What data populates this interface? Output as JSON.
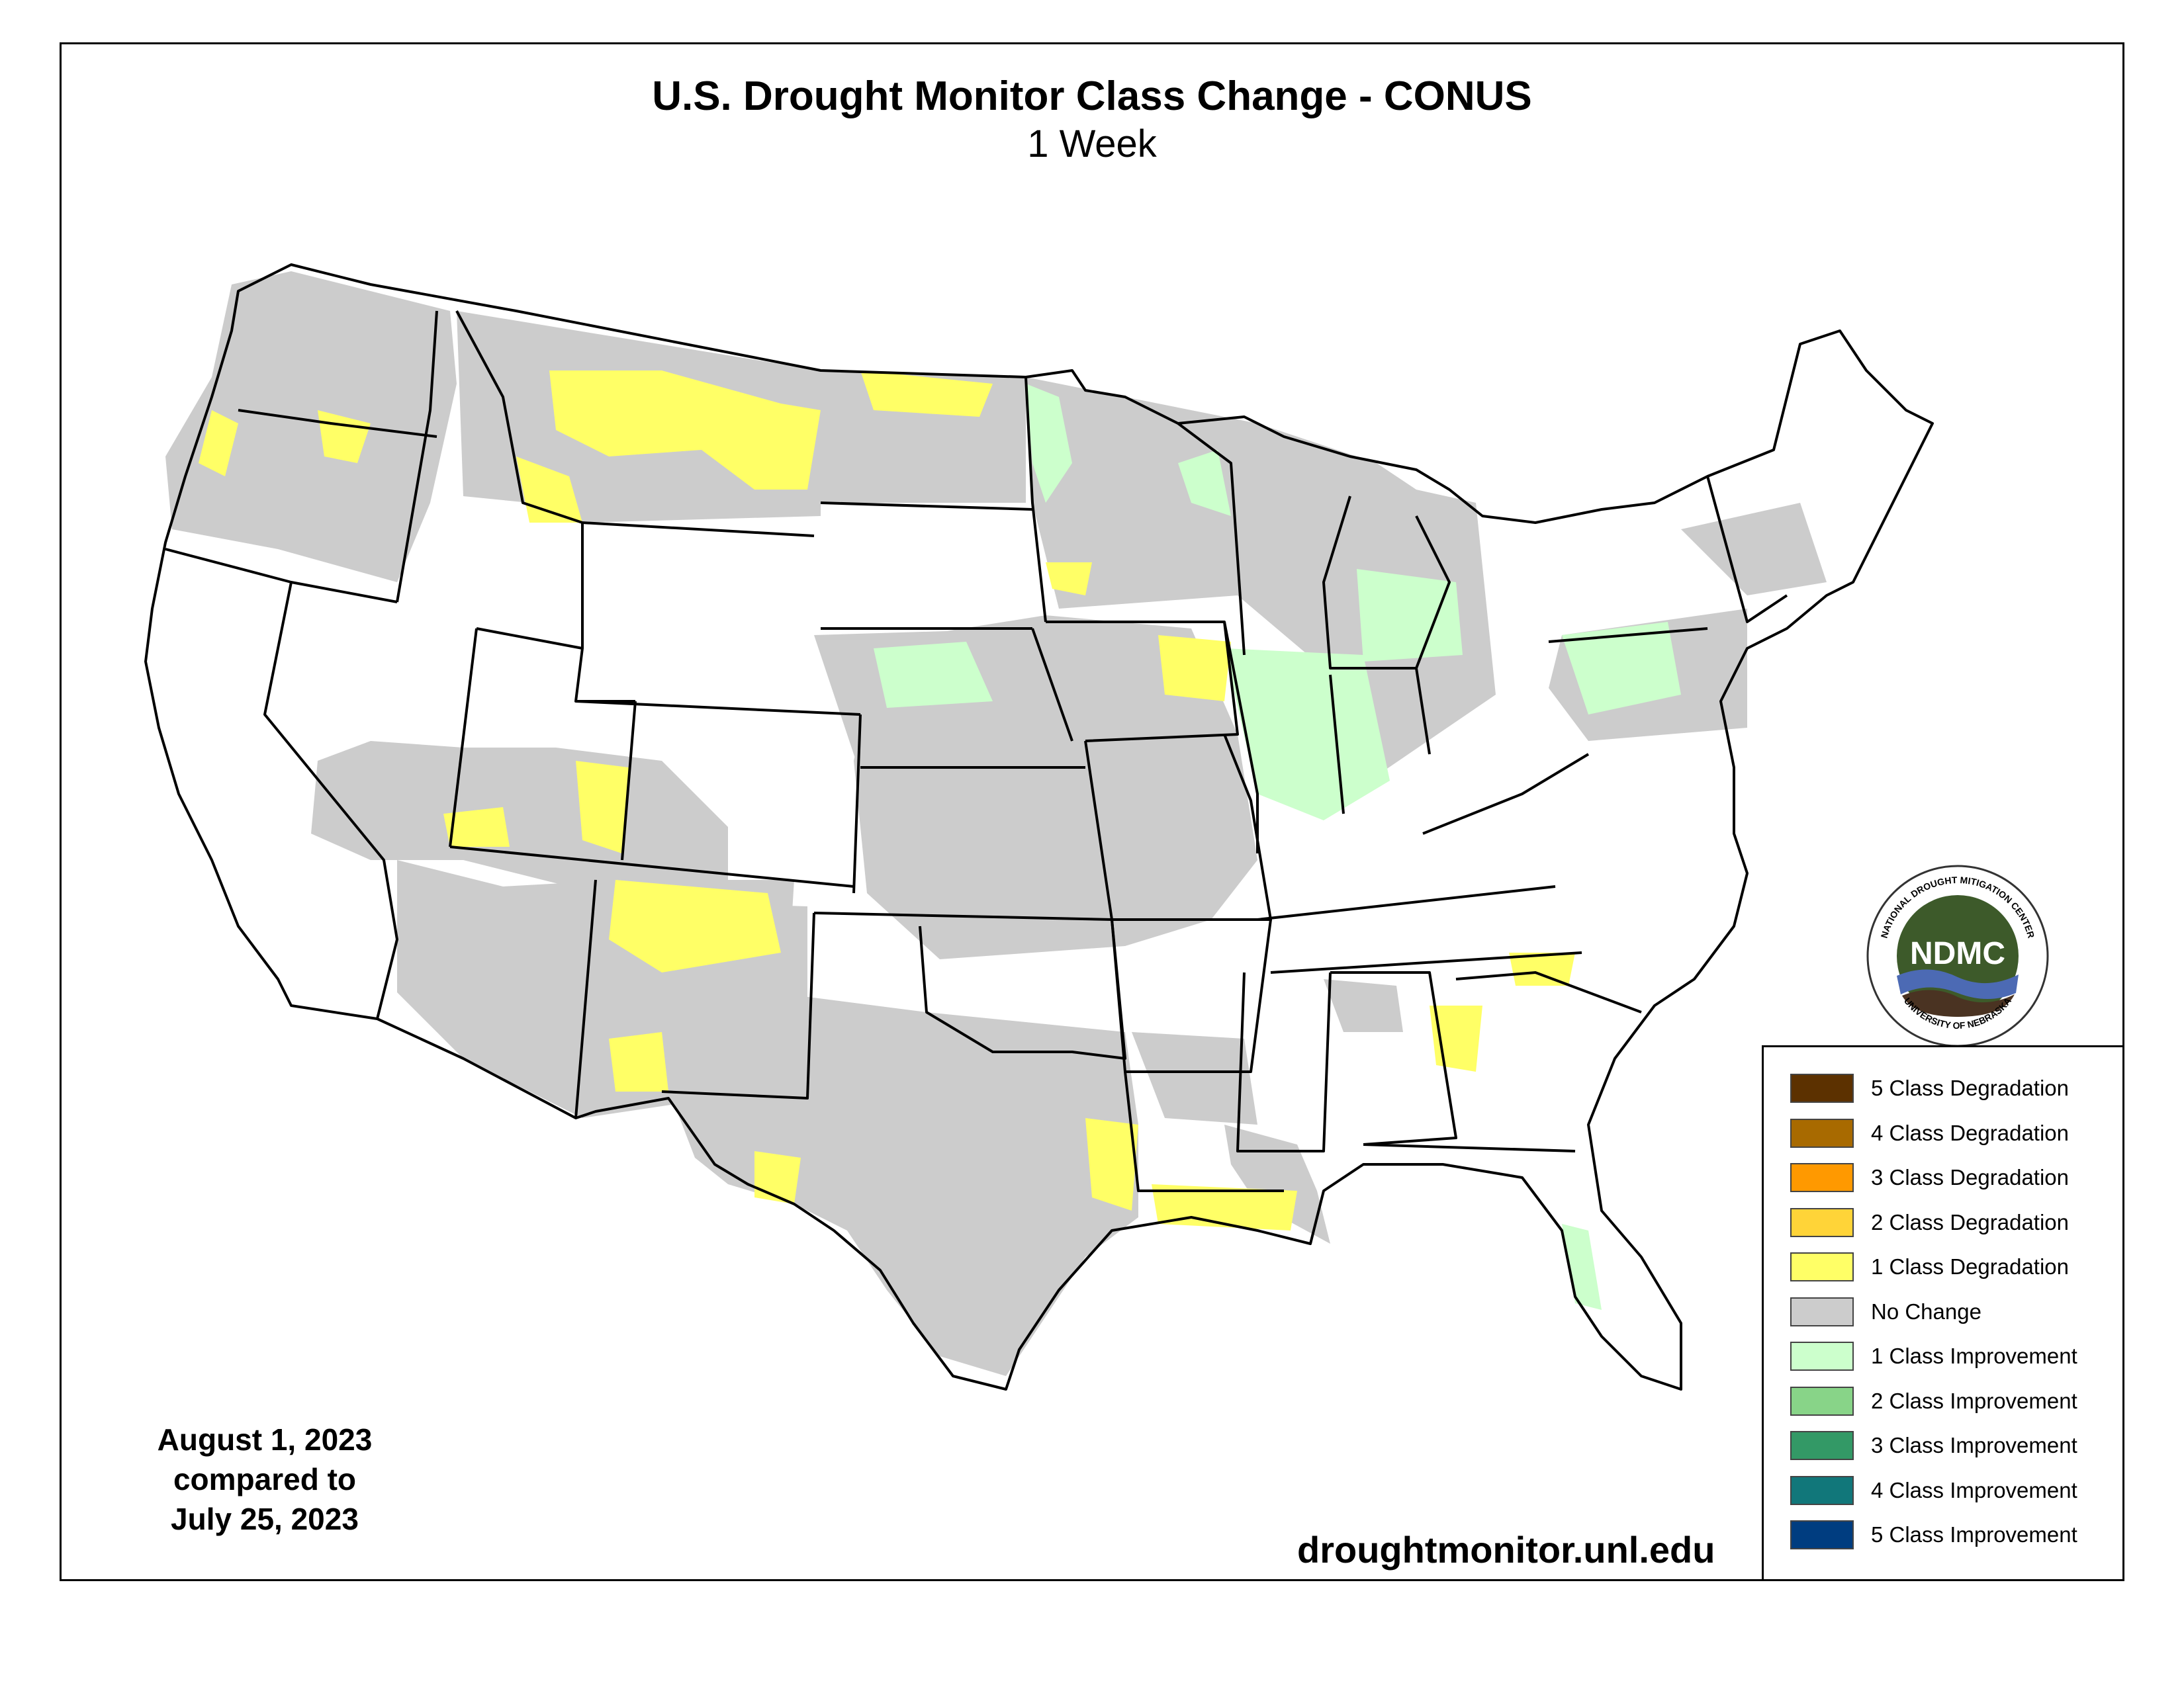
{
  "title": "U.S. Drought Monitor Class Change - CONUS",
  "subtitle": "1 Week",
  "date_block": {
    "line1": "August 1, 2023",
    "line2": "compared to",
    "line3": "July 25, 2023"
  },
  "website": "droughtmonitor.unl.edu",
  "logo": {
    "abbr": "NDMC",
    "arc_top": "NATIONAL DROUGHT MITIGATION CENTER",
    "arc_bottom": "UNIVERSITY OF NEBRASKA",
    "colors": {
      "ring": "#ffffff",
      "center": "#3d5a2a",
      "water": "#4c6ab4",
      "earth": "#4a3322"
    }
  },
  "colors": {
    "no_change": "#cccccc",
    "degradation_1": "#ffff66",
    "improvement_1": "#ccffcc",
    "improvement_2": "#88d488",
    "state_lines": "#000000"
  },
  "legend": [
    {
      "label": "5 Class Degradation",
      "color": "#5c3100"
    },
    {
      "label": "4 Class Degradation",
      "color": "#a86a00"
    },
    {
      "label": "3 Class Degradation",
      "color": "#ff9900"
    },
    {
      "label": "2 Class Degradation",
      "color": "#ffd438"
    },
    {
      "label": "1 Class Degradation",
      "color": "#ffff66"
    },
    {
      "label": "No Change",
      "color": "#cccccc"
    },
    {
      "label": "1 Class Improvement",
      "color": "#ccffcc"
    },
    {
      "label": "2 Class Improvement",
      "color": "#88d488"
    },
    {
      "label": "3 Class Improvement",
      "color": "#339966"
    },
    {
      "label": "4 Class Improvement",
      "color": "#11777a"
    },
    {
      "label": "5 Class Improvement",
      "color": "#003d80"
    }
  ]
}
